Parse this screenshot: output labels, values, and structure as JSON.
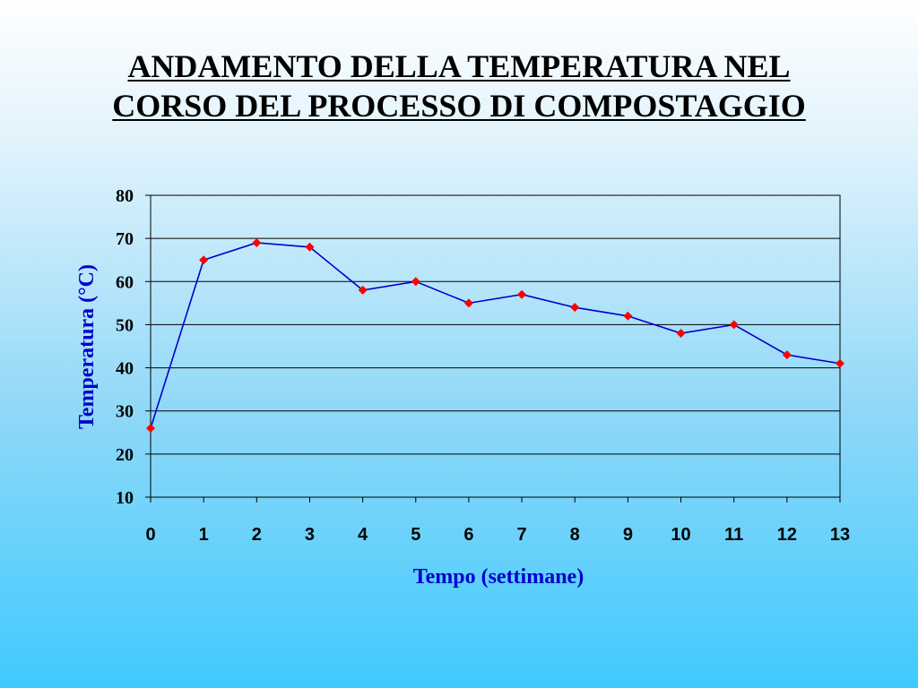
{
  "slide": {
    "title_line1": "ANDAMENTO DELLA TEMPERATURA NEL",
    "title_line2": "CORSO DEL PROCESSO DI COMPOSTAGGIO"
  },
  "chart_data": {
    "type": "line",
    "xlabel": "Tempo (settimane)",
    "ylabel": "Temperatura (°C)",
    "x": [
      0,
      1,
      2,
      3,
      4,
      5,
      6,
      7,
      8,
      9,
      10,
      11,
      12,
      13
    ],
    "series": [
      {
        "values": [
          26,
          65,
          69,
          68,
          58,
          60,
          55,
          57,
          54,
          52,
          48,
          50,
          43,
          41
        ]
      }
    ],
    "xlim": [
      0,
      13
    ],
    "ylim": [
      10,
      80
    ],
    "yticks": [
      10,
      20,
      30,
      40,
      50,
      60,
      70,
      80
    ],
    "grid": "horizontal",
    "legend": "none",
    "colors": {
      "line": "#0000cc",
      "marker": "#ff0000",
      "axis_title": "#0000cc",
      "grid": "#000000"
    }
  }
}
